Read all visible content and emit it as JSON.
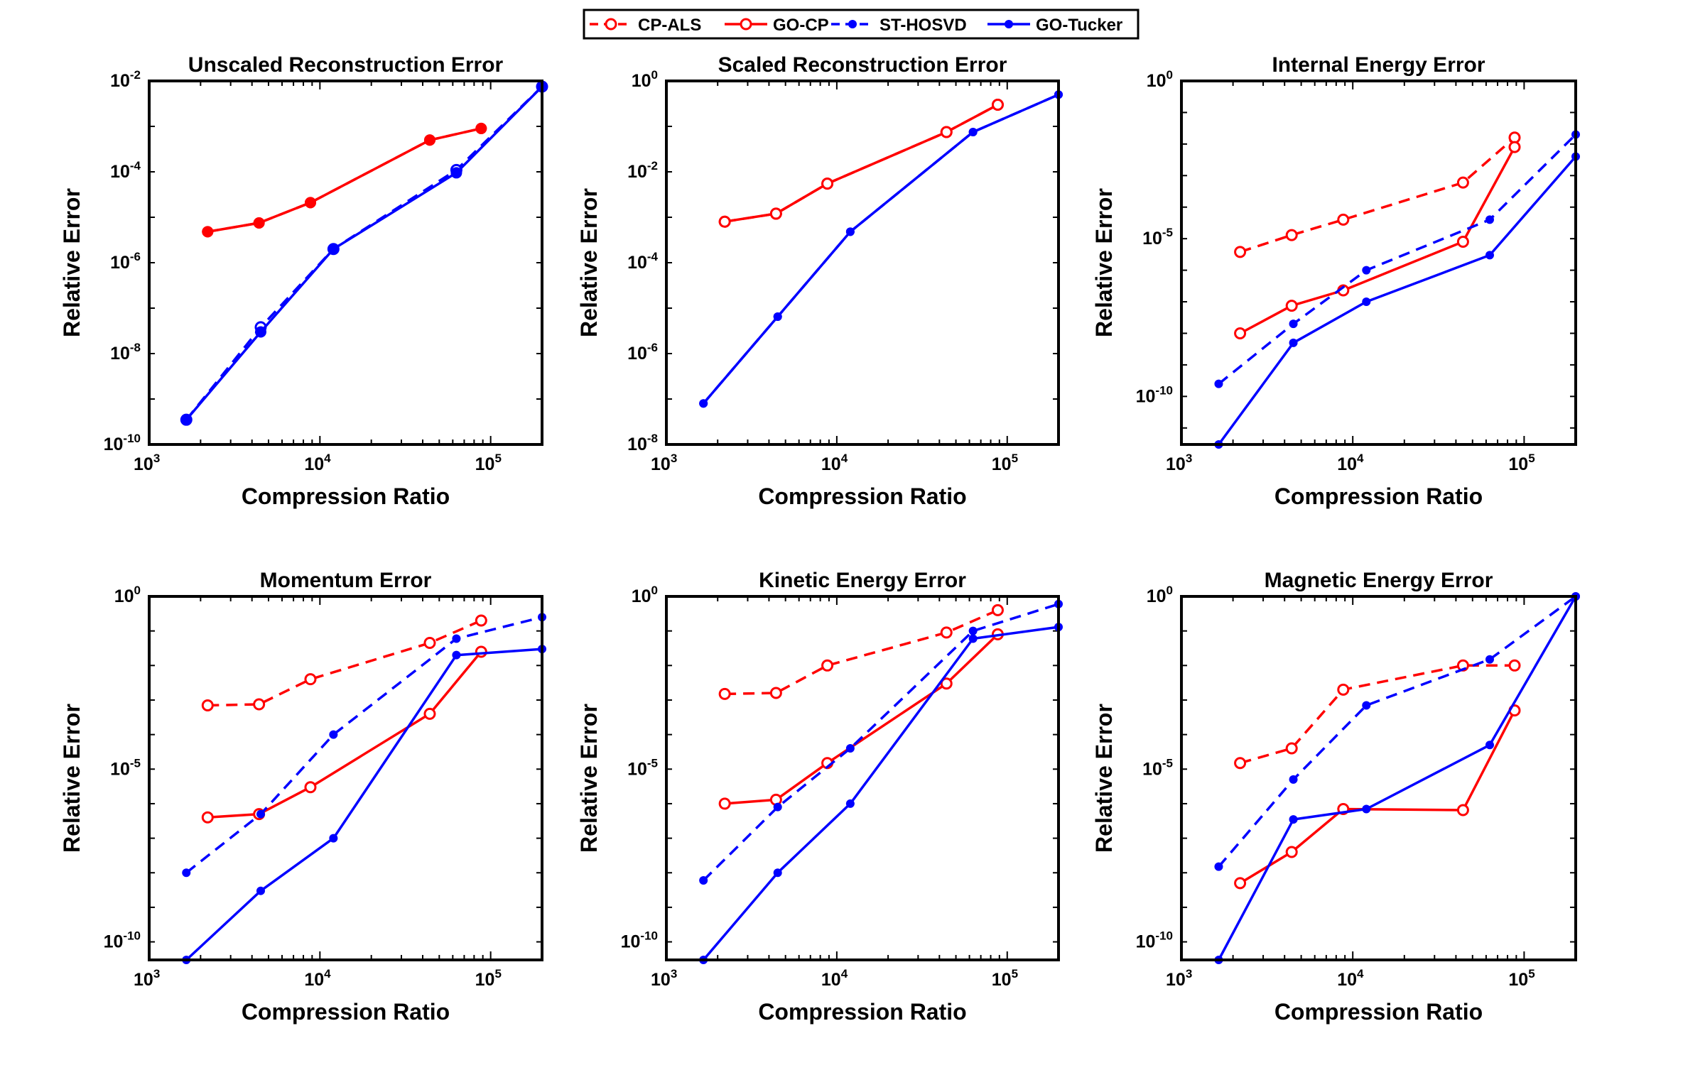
{
  "legend": {
    "entries": [
      {
        "name": "CP-ALS",
        "color": "#ff0000",
        "dashed": true,
        "marker": "open-circle"
      },
      {
        "name": "GO-CP",
        "color": "#ff0000",
        "dashed": false,
        "marker": "open-circle"
      },
      {
        "name": "ST-HOSVD",
        "color": "#0000ff",
        "dashed": true,
        "marker": "filled-dot"
      },
      {
        "name": "GO-Tucker",
        "color": "#0000ff",
        "dashed": false,
        "marker": "filled-dot"
      }
    ]
  },
  "chart_data": [
    {
      "type": "line",
      "title": "Unscaled Reconstruction Error",
      "xlabel": "Compression Ratio",
      "ylabel": "Relative Error",
      "xscale": "log",
      "yscale": "log",
      "xlim": [
        1000,
        200000
      ],
      "ylim": [
        1e-10,
        0.01
      ],
      "xticks": [
        {
          "base": "10",
          "exp": "3"
        },
        {
          "base": "10",
          "exp": "4"
        },
        {
          "base": "10",
          "exp": "5"
        }
      ],
      "xtick_values": [
        1000,
        10000,
        100000
      ],
      "yticks": [
        {
          "base": "10",
          "exp": "-2"
        },
        {
          "base": "10",
          "exp": "-4"
        },
        {
          "base": "10",
          "exp": "-6"
        },
        {
          "base": "10",
          "exp": "-8"
        },
        {
          "base": "10",
          "exp": "-10"
        }
      ],
      "ytick_values": [
        0.01,
        0.0001,
        1e-06,
        1e-08,
        1e-10
      ],
      "series": [
        {
          "name": "CP-ALS",
          "color": "#ff0000",
          "dashed": true,
          "marker": "filled-dot-large",
          "x": [
            2200,
            4400,
            8800,
            44000,
            88000
          ],
          "y": [
            4.8e-06,
            7.5e-06,
            2.1e-05,
            0.0005,
            0.0009
          ]
        },
        {
          "name": "GO-CP",
          "color": "#ff0000",
          "dashed": false,
          "marker": "filled-dot-large",
          "x": [
            2200,
            4400,
            8800,
            44000,
            88000
          ],
          "y": [
            4.8e-06,
            7.5e-06,
            2.1e-05,
            0.0005,
            0.0009
          ]
        },
        {
          "name": "ST-HOSVD",
          "color": "#0000ff",
          "dashed": true,
          "marker": "open-circle",
          "x": [
            1650,
            4500,
            12000,
            63000,
            200000
          ],
          "y": [
            3.5e-10,
            3.8e-08,
            2e-06,
            0.00011,
            0.0075
          ]
        },
        {
          "name": "GO-Tucker",
          "color": "#0000ff",
          "dashed": false,
          "marker": "filled-dot-large",
          "x": [
            1650,
            4500,
            12000,
            63000,
            200000
          ],
          "y": [
            3.5e-10,
            3e-08,
            2e-06,
            9.5e-05,
            0.0075
          ]
        }
      ]
    },
    {
      "type": "line",
      "title": "Scaled Reconstruction Error",
      "xlabel": "Compression Ratio",
      "ylabel": "Relative Error",
      "xscale": "log",
      "yscale": "log",
      "xlim": [
        1000,
        200000
      ],
      "ylim": [
        1e-08,
        1
      ],
      "xticks": [
        {
          "base": "10",
          "exp": "3"
        },
        {
          "base": "10",
          "exp": "4"
        },
        {
          "base": "10",
          "exp": "5"
        }
      ],
      "xtick_values": [
        1000,
        10000,
        100000
      ],
      "yticks": [
        {
          "base": "10",
          "exp": "0"
        },
        {
          "base": "10",
          "exp": "-2"
        },
        {
          "base": "10",
          "exp": "-4"
        },
        {
          "base": "10",
          "exp": "-6"
        },
        {
          "base": "10",
          "exp": "-8"
        }
      ],
      "ytick_values": [
        1,
        0.01,
        0.0001,
        1e-06,
        1e-08
      ],
      "series": [
        {
          "name": "CP-ALS",
          "color": "#ff0000",
          "dashed": true,
          "marker": "open-circle",
          "x": [
            2200,
            4400,
            8800,
            44000,
            88000
          ],
          "y": [
            0.0008,
            0.0012,
            0.0055,
            0.075,
            0.3
          ]
        },
        {
          "name": "GO-CP",
          "color": "#ff0000",
          "dashed": false,
          "marker": "open-circle",
          "x": [
            2200,
            4400,
            8800,
            44000,
            88000
          ],
          "y": [
            0.0008,
            0.0012,
            0.0055,
            0.075,
            0.3
          ]
        },
        {
          "name": "ST-HOSVD",
          "color": "#0000ff",
          "dashed": true,
          "marker": "filled-dot",
          "x": [
            1650,
            4500,
            12000,
            63000,
            200000
          ],
          "y": [
            8e-08,
            6.5e-06,
            0.00048,
            0.075,
            0.5
          ]
        },
        {
          "name": "GO-Tucker",
          "color": "#0000ff",
          "dashed": false,
          "marker": "filled-dot",
          "x": [
            1650,
            4500,
            12000,
            63000,
            200000
          ],
          "y": [
            8e-08,
            6.5e-06,
            0.00048,
            0.075,
            0.5
          ]
        }
      ]
    },
    {
      "type": "line",
      "title": "Internal Energy Error",
      "xlabel": "Compression Ratio",
      "ylabel": "Relative Error",
      "xscale": "log",
      "yscale": "log",
      "xlim": [
        1000,
        200000
      ],
      "ylim": [
        3e-12,
        1
      ],
      "xticks": [
        {
          "base": "10",
          "exp": "3"
        },
        {
          "base": "10",
          "exp": "4"
        },
        {
          "base": "10",
          "exp": "5"
        }
      ],
      "xtick_values": [
        1000,
        10000,
        100000
      ],
      "yticks": [
        {
          "base": "10",
          "exp": "0"
        },
        {
          "base": "10",
          "exp": "-5"
        },
        {
          "base": "10",
          "exp": "-10"
        }
      ],
      "ytick_values": [
        1,
        1e-05,
        1e-10
      ],
      "series": [
        {
          "name": "CP-ALS",
          "color": "#ff0000",
          "dashed": true,
          "marker": "open-circle",
          "x": [
            2200,
            4400,
            8800,
            44000,
            88000
          ],
          "y": [
            3.8e-06,
            1.3e-05,
            4e-05,
            0.0006,
            0.016
          ]
        },
        {
          "name": "GO-CP",
          "color": "#ff0000",
          "dashed": false,
          "marker": "open-circle",
          "x": [
            2200,
            4400,
            8800,
            44000,
            88000
          ],
          "y": [
            1e-08,
            7.5e-08,
            2.3e-07,
            8e-06,
            0.008
          ]
        },
        {
          "name": "ST-HOSVD",
          "color": "#0000ff",
          "dashed": true,
          "marker": "filled-dot",
          "x": [
            1650,
            4500,
            12000,
            63000,
            200000
          ],
          "y": [
            2.5e-10,
            2e-08,
            1e-06,
            4e-05,
            0.02
          ]
        },
        {
          "name": "GO-Tucker",
          "color": "#0000ff",
          "dashed": false,
          "marker": "filled-dot",
          "x": [
            1650,
            4500,
            12000,
            63000,
            200000
          ],
          "y": [
            3e-12,
            5e-09,
            1e-07,
            3e-06,
            0.004
          ]
        }
      ]
    },
    {
      "type": "line",
      "title": "Momentum Error",
      "xlabel": "Compression Ratio",
      "ylabel": "Relative Error",
      "xscale": "log",
      "yscale": "log",
      "xlim": [
        1000,
        200000
      ],
      "ylim": [
        3e-11,
        1
      ],
      "xticks": [
        {
          "base": "10",
          "exp": "3"
        },
        {
          "base": "10",
          "exp": "4"
        },
        {
          "base": "10",
          "exp": "5"
        }
      ],
      "xtick_values": [
        1000,
        10000,
        100000
      ],
      "yticks": [
        {
          "base": "10",
          "exp": "0"
        },
        {
          "base": "10",
          "exp": "-5"
        },
        {
          "base": "10",
          "exp": "-10"
        }
      ],
      "ytick_values": [
        1,
        1e-05,
        1e-10
      ],
      "series": [
        {
          "name": "CP-ALS",
          "color": "#ff0000",
          "dashed": true,
          "marker": "open-circle",
          "x": [
            2200,
            4400,
            8800,
            44000,
            88000
          ],
          "y": [
            0.0007,
            0.00075,
            0.004,
            0.045,
            0.2
          ]
        },
        {
          "name": "GO-CP",
          "color": "#ff0000",
          "dashed": false,
          "marker": "open-circle",
          "x": [
            2200,
            4400,
            8800,
            44000,
            88000
          ],
          "y": [
            4e-07,
            5e-07,
            3e-06,
            0.0004,
            0.025
          ]
        },
        {
          "name": "ST-HOSVD",
          "color": "#0000ff",
          "dashed": true,
          "marker": "filled-dot",
          "x": [
            1650,
            4500,
            12000,
            63000,
            200000
          ],
          "y": [
            1e-08,
            5e-07,
            0.0001,
            0.06,
            0.25
          ]
        },
        {
          "name": "GO-Tucker",
          "color": "#0000ff",
          "dashed": false,
          "marker": "filled-dot",
          "x": [
            1650,
            4500,
            12000,
            63000,
            200000
          ],
          "y": [
            3e-11,
            3e-09,
            1e-07,
            0.02,
            0.03
          ]
        }
      ]
    },
    {
      "type": "line",
      "title": "Kinetic Energy Error",
      "xlabel": "Compression Ratio",
      "ylabel": "Relative Error",
      "xscale": "log",
      "yscale": "log",
      "xlim": [
        1000,
        200000
      ],
      "ylim": [
        3e-11,
        1
      ],
      "xticks": [
        {
          "base": "10",
          "exp": "3"
        },
        {
          "base": "10",
          "exp": "4"
        },
        {
          "base": "10",
          "exp": "5"
        }
      ],
      "xtick_values": [
        1000,
        10000,
        100000
      ],
      "yticks": [
        {
          "base": "10",
          "exp": "0"
        },
        {
          "base": "10",
          "exp": "-5"
        },
        {
          "base": "10",
          "exp": "-10"
        }
      ],
      "ytick_values": [
        1,
        1e-05,
        1e-10
      ],
      "series": [
        {
          "name": "CP-ALS",
          "color": "#ff0000",
          "dashed": true,
          "marker": "open-circle",
          "x": [
            2200,
            4400,
            8800,
            44000,
            88000
          ],
          "y": [
            0.0015,
            0.0016,
            0.01,
            0.09,
            0.4
          ]
        },
        {
          "name": "GO-CP",
          "color": "#ff0000",
          "dashed": false,
          "marker": "open-circle",
          "x": [
            2200,
            4400,
            8800,
            44000,
            88000
          ],
          "y": [
            1e-06,
            1.3e-06,
            1.5e-05,
            0.003,
            0.08
          ]
        },
        {
          "name": "ST-HOSVD",
          "color": "#0000ff",
          "dashed": true,
          "marker": "filled-dot",
          "x": [
            1650,
            4500,
            12000,
            63000,
            200000
          ],
          "y": [
            6e-09,
            8e-07,
            4e-05,
            0.1,
            0.6
          ]
        },
        {
          "name": "GO-Tucker",
          "color": "#0000ff",
          "dashed": false,
          "marker": "filled-dot",
          "x": [
            1650,
            4500,
            12000,
            63000,
            200000
          ],
          "y": [
            3e-11,
            1e-08,
            1e-06,
            0.06,
            0.13
          ]
        }
      ]
    },
    {
      "type": "line",
      "title": "Magnetic Energy Error",
      "xlabel": "Compression Ratio",
      "ylabel": "Relative Error",
      "xscale": "log",
      "yscale": "log",
      "xlim": [
        1000,
        200000
      ],
      "ylim": [
        3e-11,
        1
      ],
      "xticks": [
        {
          "base": "10",
          "exp": "3"
        },
        {
          "base": "10",
          "exp": "4"
        },
        {
          "base": "10",
          "exp": "5"
        }
      ],
      "xtick_values": [
        1000,
        10000,
        100000
      ],
      "yticks": [
        {
          "base": "10",
          "exp": "0"
        },
        {
          "base": "10",
          "exp": "-5"
        },
        {
          "base": "10",
          "exp": "-10"
        }
      ],
      "ytick_values": [
        1,
        1e-05,
        1e-10
      ],
      "series": [
        {
          "name": "CP-ALS",
          "color": "#ff0000",
          "dashed": true,
          "marker": "open-circle",
          "x": [
            2200,
            4400,
            8800,
            44000,
            88000
          ],
          "y": [
            1.5e-05,
            4e-05,
            0.002,
            0.01,
            0.01
          ]
        },
        {
          "name": "GO-CP",
          "color": "#ff0000",
          "dashed": false,
          "marker": "open-circle",
          "x": [
            2200,
            4400,
            8800,
            44000,
            88000
          ],
          "y": [
            5e-09,
            4e-08,
            7e-07,
            6.5e-07,
            0.0005
          ]
        },
        {
          "name": "ST-HOSVD",
          "color": "#0000ff",
          "dashed": true,
          "marker": "filled-dot",
          "x": [
            1650,
            4500,
            12000,
            63000,
            200000
          ],
          "y": [
            1.5e-08,
            5e-06,
            0.0007,
            0.015,
            1.0
          ]
        },
        {
          "name": "GO-Tucker",
          "color": "#0000ff",
          "dashed": false,
          "marker": "filled-dot",
          "x": [
            1650,
            4500,
            12000,
            63000,
            200000
          ],
          "y": [
            3e-11,
            3.5e-07,
            7e-07,
            5e-05,
            1.0
          ]
        }
      ]
    }
  ]
}
